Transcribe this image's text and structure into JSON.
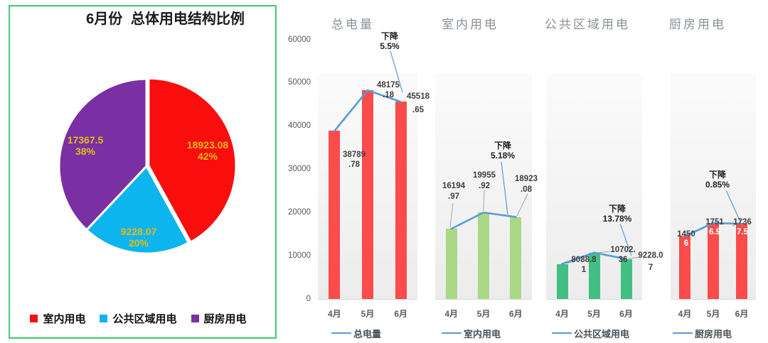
{
  "y_axis_ticks": [
    "0",
    "10000",
    "20000",
    "30000",
    "40000",
    "50000",
    "60000"
  ],
  "chart_data": [
    {
      "type": "pie",
      "title": "6月份 总体用电结构比例",
      "legend_position": "bottom",
      "slices": [
        {
          "name": "室内用电",
          "value": 18923.08,
          "percent": 42,
          "color": "#f90d0d",
          "label_lines": [
            "18923.08",
            "42%"
          ]
        },
        {
          "name": "公共区域用电",
          "value": 9228.07,
          "percent": 20,
          "color": "#0db5ee",
          "label_lines": [
            "9228.07",
            "20%"
          ]
        },
        {
          "name": "厨房用电",
          "value": 17367.5,
          "percent": 38,
          "color": "#7a30a3",
          "label_lines": [
            "17367.5",
            "38%"
          ]
        }
      ],
      "data_label_color": "#e5bd14",
      "panel_border_color": "#4dc97d"
    },
    {
      "type": "bar",
      "title": "总电量",
      "categories": [
        "4月",
        "5月",
        "6月"
      ],
      "values": [
        38789.78,
        48175.18,
        45518.65
      ],
      "data_labels": [
        [
          "38789",
          ".78"
        ],
        [
          "48175",
          ".18"
        ],
        [
          "45518",
          ".65"
        ]
      ],
      "bar_color": "#fb4b4b",
      "line_color": "#5b9bd5",
      "annotation_lines": [
        "下降",
        "5.5%"
      ],
      "legend": "总电量",
      "ylim": [
        0,
        60000
      ],
      "grid": false,
      "legend_position": "bottom"
    },
    {
      "type": "bar",
      "title": "室内用电",
      "categories": [
        "4月",
        "5月",
        "6月"
      ],
      "values": [
        16194.97,
        19955.92,
        18923.08
      ],
      "data_labels": [
        [
          "16194",
          ".97"
        ],
        [
          "19955",
          ".92"
        ],
        [
          "18923",
          ".08"
        ]
      ],
      "bar_color": "#abd884",
      "line_color": "#5b9bd5",
      "annotation_lines": [
        "下降",
        "5.18%"
      ],
      "legend": "室内用电",
      "ylim": [
        0,
        60000
      ],
      "grid": false,
      "legend_position": "bottom"
    },
    {
      "type": "bar",
      "title": "公共区域用电",
      "categories": [
        "4月",
        "5月",
        "6月"
      ],
      "values": [
        8088.81,
        10702.36,
        9228.07
      ],
      "data_labels": [
        [
          "8088.8",
          "1"
        ],
        [
          "10702.",
          "36"
        ],
        [
          "9228.0",
          "7"
        ]
      ],
      "bar_color": "#41c083",
      "line_color": "#5b9bd5",
      "annotation_lines": [
        "下降",
        "13.78%"
      ],
      "legend": "公共区域用电",
      "ylim": [
        0,
        60000
      ],
      "grid": false,
      "legend_position": "bottom"
    },
    {
      "type": "bar",
      "title": "厨房用电",
      "categories": [
        "4月",
        "5月",
        "6月"
      ],
      "values": [
        14506,
        17516.9,
        17367.5
      ],
      "data_labels": [
        [
          "1450",
          "6"
        ],
        [
          "1751",
          "6.9"
        ],
        [
          "1736",
          "7.5"
        ]
      ],
      "bar_color": "#fb4b4b",
      "line_color": "#5b9bd5",
      "annotation_lines": [
        "下降",
        "0.85%"
      ],
      "legend": "厨房用电",
      "ylim": [
        0,
        60000
      ],
      "grid": false,
      "legend_position": "bottom"
    }
  ]
}
